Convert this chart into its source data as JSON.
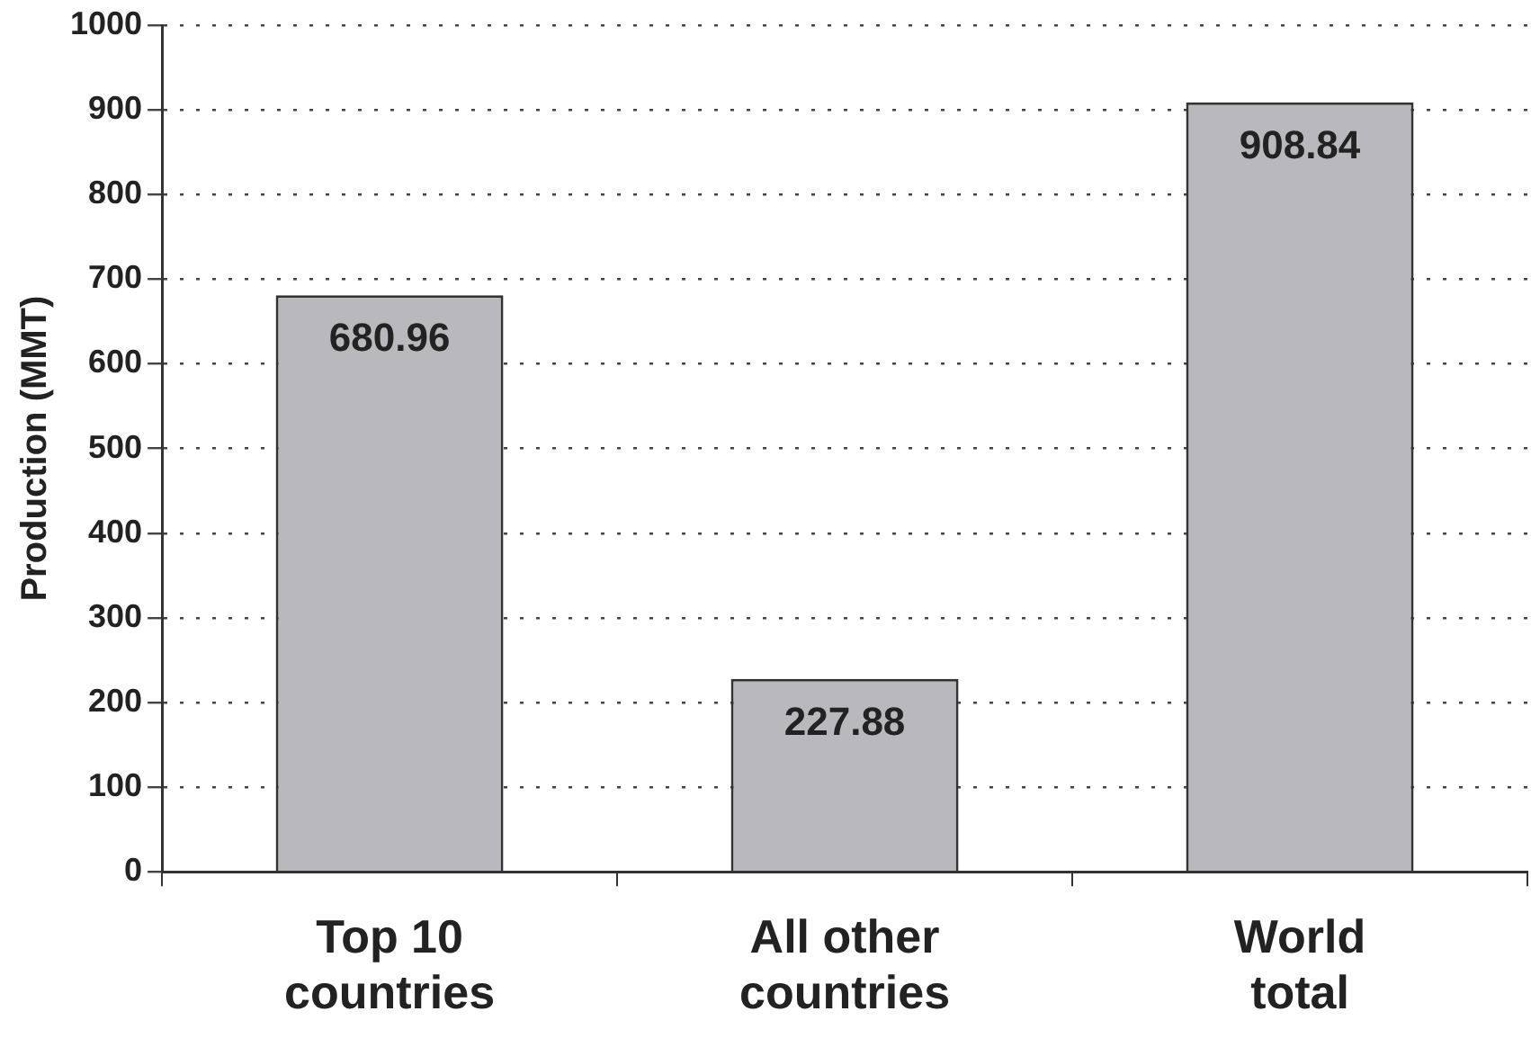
{
  "chart_data": {
    "type": "bar",
    "ylabel": "Production (MMT)",
    "categories": [
      "Top 10 countries",
      "All other countries",
      "World total"
    ],
    "values": [
      680.96,
      227.88,
      908.84
    ],
    "color": "#b9b9bd",
    "ylim": [
      0,
      1000
    ],
    "yticks": [
      0,
      100,
      200,
      300,
      400,
      500,
      600,
      700,
      800,
      900,
      1000
    ],
    "grid": "y",
    "data_labels": true,
    "legend": false
  }
}
